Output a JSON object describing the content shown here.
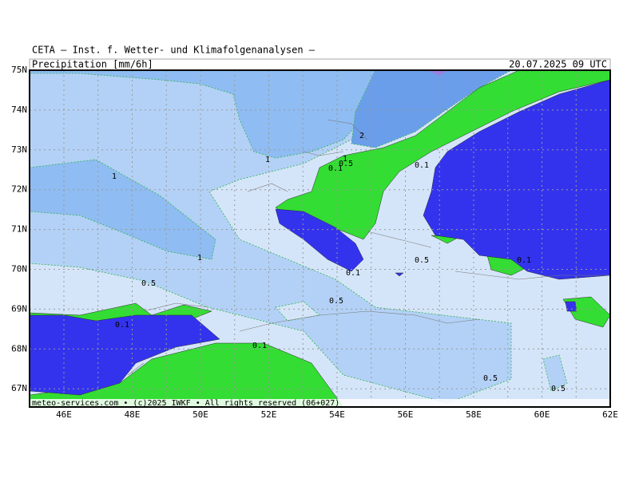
{
  "header": {
    "title": "CETA — Inst. f. Wetter- und Klimafolgenanalysen —",
    "product": "Precipitation_[mm/6h]",
    "valid_time": "20.07.2025 09 UTC"
  },
  "map": {
    "lat_labels": [
      "75N",
      "74N",
      "73N",
      "72N",
      "71N",
      "70N",
      "69N",
      "68N",
      "67N"
    ],
    "lon_labels": [
      "46E",
      "48E",
      "50E",
      "52E",
      "54E",
      "56E",
      "58E",
      "60E",
      "62E"
    ],
    "contour_labels": [
      1,
      1,
      2,
      1,
      0.5,
      0.1,
      0.1,
      1,
      0.5,
      0.1,
      0.5,
      0.1,
      0.1,
      0.5,
      0.5,
      0.5,
      0.1
    ]
  },
  "footer": "meteo-services.com • (c)2025 IWKF • All rights reserved (06+027)"
}
